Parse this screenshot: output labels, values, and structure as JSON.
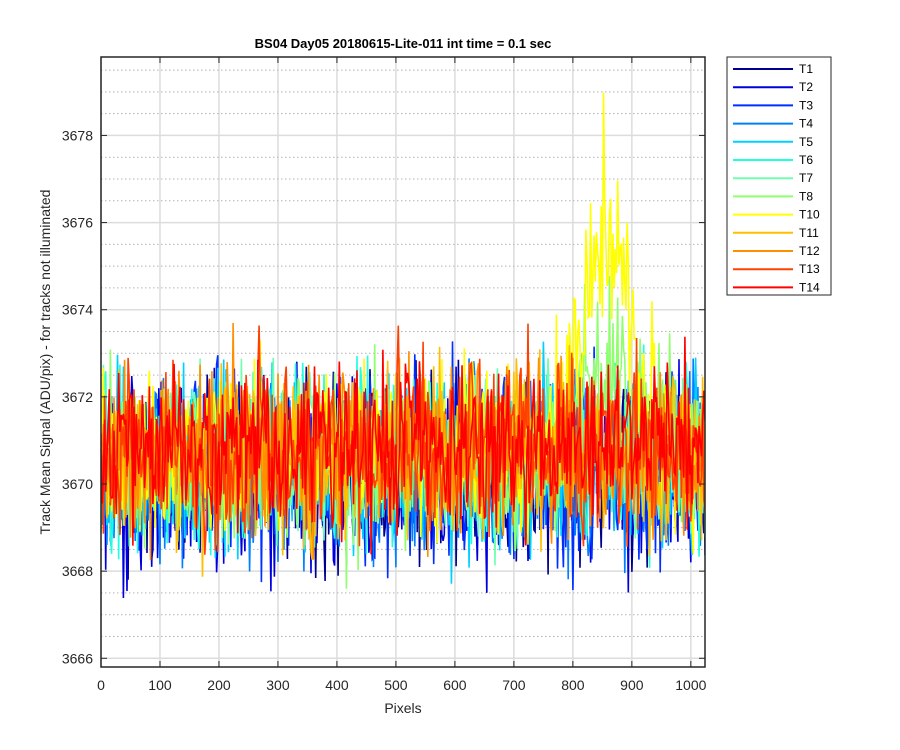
{
  "chart_data": {
    "type": "line",
    "title": "BS04 Day05 20180615-Lite-011 int time = 0.1 sec",
    "xlabel": "Pixels",
    "ylabel": "Track Mean Signal (ADU/pix) - for tracks not illuminated",
    "xlim": [
      0,
      1024
    ],
    "ylim": [
      3665.8,
      3679.8
    ],
    "x_ticks": [
      0,
      100,
      200,
      300,
      400,
      500,
      600,
      700,
      800,
      900,
      1000
    ],
    "y_ticks": [
      3666,
      3668,
      3670,
      3672,
      3674,
      3676,
      3678
    ],
    "grid": "major solid, minor dotted",
    "legend_position": "outside-top-right",
    "series": [
      {
        "name": "T1",
        "color": "#00008f",
        "mean": 3670.2,
        "noise": 1.05
      },
      {
        "name": "T2",
        "color": "#0000df",
        "mean": 3670.2,
        "noise": 1.05
      },
      {
        "name": "T3",
        "color": "#0030ff",
        "mean": 3670.3,
        "noise": 1.0
      },
      {
        "name": "T4",
        "color": "#0080ff",
        "mean": 3670.4,
        "noise": 1.0
      },
      {
        "name": "T5",
        "color": "#00cfff",
        "mean": 3670.5,
        "noise": 1.0
      },
      {
        "name": "T6",
        "color": "#20ffdf",
        "mean": 3670.6,
        "noise": 0.95
      },
      {
        "name": "T7",
        "color": "#70ffb0",
        "mean": 3670.6,
        "noise": 0.95
      },
      {
        "name": "T8",
        "color": "#8fff70",
        "mean": 3670.7,
        "noise": 0.95,
        "bump_peak": 2.0,
        "bump_center": 855,
        "bump_width": 55
      },
      {
        "name": "T10",
        "color": "#ffff00",
        "mean": 3670.8,
        "noise": 0.95,
        "bump_peak": 4.8,
        "bump_center": 855,
        "bump_width": 55
      },
      {
        "name": "T11",
        "color": "#ffbf00",
        "mean": 3670.7,
        "noise": 0.95
      },
      {
        "name": "T12",
        "color": "#ff8f00",
        "mean": 3670.8,
        "noise": 0.95
      },
      {
        "name": "T13",
        "color": "#ff4000",
        "mean": 3670.8,
        "noise": 0.95
      },
      {
        "name": "T14",
        "color": "#ff0000",
        "mean": 3670.9,
        "noise": 0.9
      }
    ]
  }
}
